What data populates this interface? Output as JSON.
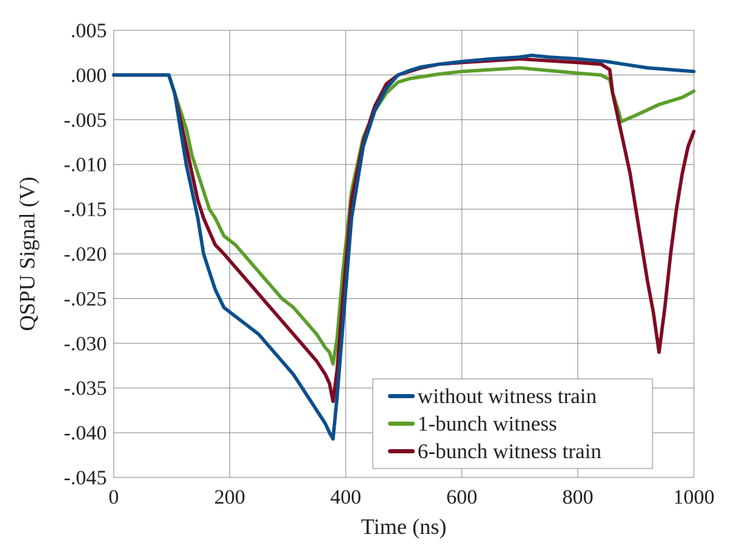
{
  "chart_data": {
    "type": "line",
    "title": "",
    "xlabel": "Time (ns)",
    "ylabel": "QSPU Signal (V)",
    "xlim": [
      0,
      1000
    ],
    "ylim": [
      -0.045,
      0.005
    ],
    "x_ticks": [
      0,
      200,
      400,
      600,
      800,
      1000
    ],
    "x_tick_labels": [
      "0",
      "200",
      "400",
      "600",
      "800",
      "1000"
    ],
    "y_ticks": [
      0.005,
      0.0,
      -0.005,
      -0.01,
      -0.015,
      -0.02,
      -0.025,
      -0.03,
      -0.035,
      -0.04,
      -0.045
    ],
    "y_tick_labels": [
      ".005",
      ".000",
      "-.005",
      "-.010",
      "-.015",
      "-.020",
      "-.025",
      "-.030",
      "-.035",
      "-.040",
      "-.045"
    ],
    "grid": true,
    "legend_position": "bottom-right",
    "series": [
      {
        "name": "without witness train",
        "color": "#0a4f8c",
        "x": [
          0,
          20,
          40,
          60,
          80,
          95,
          105,
          115,
          125,
          135,
          145,
          155,
          165,
          175,
          190,
          210,
          230,
          250,
          270,
          290,
          310,
          330,
          350,
          365,
          372,
          378,
          385,
          395,
          410,
          430,
          450,
          470,
          490,
          510,
          530,
          560,
          600,
          650,
          700,
          720,
          750,
          800,
          850,
          880,
          920,
          960,
          1000
        ],
        "y": [
          0.0,
          0.0,
          0.0,
          0.0,
          0.0,
          0.0,
          -0.002,
          -0.006,
          -0.01,
          -0.013,
          -0.016,
          -0.02,
          -0.022,
          -0.024,
          -0.026,
          -0.027,
          -0.028,
          -0.029,
          -0.0305,
          -0.032,
          -0.0335,
          -0.0355,
          -0.0375,
          -0.039,
          -0.04,
          -0.0407,
          -0.036,
          -0.028,
          -0.016,
          -0.008,
          -0.004,
          -0.0015,
          0.0,
          0.0005,
          0.0009,
          0.0012,
          0.0015,
          0.0018,
          0.002,
          0.0022,
          0.002,
          0.0018,
          0.0015,
          0.0012,
          0.0008,
          0.0006,
          0.0004
        ]
      },
      {
        "name": "1-bunch witness",
        "color": "#5c9e2a",
        "x": [
          0,
          20,
          40,
          60,
          80,
          95,
          105,
          115,
          125,
          135,
          145,
          155,
          165,
          175,
          190,
          210,
          230,
          250,
          270,
          290,
          310,
          330,
          350,
          365,
          372,
          378,
          385,
          395,
          410,
          430,
          450,
          470,
          490,
          510,
          530,
          560,
          600,
          650,
          700,
          750,
          800,
          840,
          855,
          860,
          870,
          875,
          900,
          940,
          980,
          1000
        ],
        "y": [
          0.0,
          0.0,
          0.0,
          0.0,
          0.0,
          0.0,
          -0.002,
          -0.004,
          -0.006,
          -0.009,
          -0.011,
          -0.013,
          -0.015,
          -0.016,
          -0.018,
          -0.019,
          -0.0205,
          -0.022,
          -0.0235,
          -0.025,
          -0.026,
          -0.0275,
          -0.029,
          -0.0305,
          -0.031,
          -0.0323,
          -0.0295,
          -0.022,
          -0.013,
          -0.007,
          -0.004,
          -0.002,
          -0.0008,
          -0.0004,
          -0.0002,
          0.0001,
          0.0004,
          0.0006,
          0.0008,
          0.0005,
          0.0002,
          0.0,
          -0.0005,
          -0.002,
          -0.004,
          -0.0052,
          -0.0045,
          -0.0033,
          -0.0025,
          -0.0018
        ]
      },
      {
        "name": "6-bunch witness train",
        "color": "#7f0a24",
        "x": [
          0,
          20,
          40,
          60,
          80,
          95,
          105,
          115,
          125,
          135,
          145,
          155,
          165,
          175,
          190,
          210,
          230,
          250,
          270,
          290,
          310,
          330,
          350,
          365,
          372,
          378,
          385,
          395,
          410,
          430,
          450,
          470,
          490,
          510,
          530,
          560,
          600,
          650,
          700,
          750,
          800,
          840,
          855,
          860,
          870,
          880,
          890,
          900,
          910,
          920,
          930,
          940,
          950,
          960,
          970,
          980,
          990,
          1000
        ],
        "y": [
          0.0,
          0.0,
          0.0,
          0.0,
          0.0,
          0.0,
          -0.002,
          -0.005,
          -0.008,
          -0.011,
          -0.014,
          -0.016,
          -0.0175,
          -0.019,
          -0.02,
          -0.0215,
          -0.023,
          -0.0245,
          -0.026,
          -0.0275,
          -0.029,
          -0.0305,
          -0.032,
          -0.0335,
          -0.0345,
          -0.0365,
          -0.033,
          -0.025,
          -0.014,
          -0.0075,
          -0.0035,
          -0.001,
          0.0,
          0.0004,
          0.0008,
          0.0012,
          0.0014,
          0.0016,
          0.0018,
          0.0016,
          0.0014,
          0.0012,
          0.0006,
          -0.002,
          -0.005,
          -0.008,
          -0.011,
          -0.015,
          -0.019,
          -0.023,
          -0.0265,
          -0.031,
          -0.026,
          -0.02,
          -0.015,
          -0.011,
          -0.008,
          -0.0063
        ]
      }
    ]
  }
}
